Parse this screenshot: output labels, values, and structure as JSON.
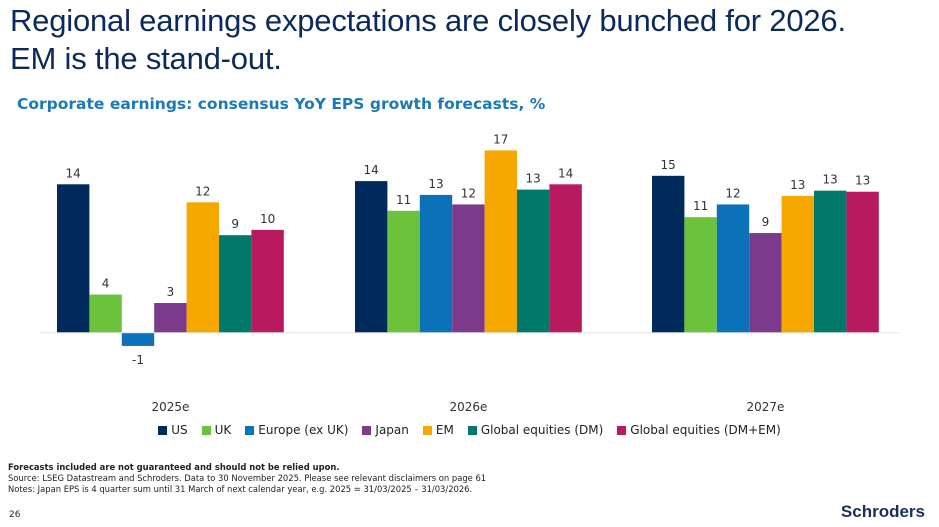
{
  "title_line1": "Regional earnings expectations are closely bunched for 2026.",
  "title_line2": "EM is the stand-out.",
  "chart_data": {
    "type": "bar",
    "title": "Corporate earnings: consensus YoY EPS growth forecasts, %",
    "xlabel": "",
    "ylabel": "",
    "categories": [
      "2025e",
      "2026e",
      "2027e"
    ],
    "series": [
      {
        "name": "US",
        "color": "#002a5c",
        "values": [
          14.0,
          14.3,
          14.8
        ],
        "labels": [
          "14",
          "14",
          "15"
        ]
      },
      {
        "name": "UK",
        "color": "#6cc23a",
        "values": [
          3.6,
          11.5,
          10.9
        ],
        "labels": [
          "4",
          "11",
          "11"
        ]
      },
      {
        "name": "Europe (ex UK)",
        "color": "#0b72ba",
        "values": [
          -1.25,
          13.0,
          12.1
        ],
        "labels": [
          "-1",
          "13",
          "12"
        ]
      },
      {
        "name": "Japan",
        "color": "#7b3a8c",
        "values": [
          2.8,
          12.1,
          9.4
        ],
        "labels": [
          "3",
          "12",
          "9"
        ]
      },
      {
        "name": "EM",
        "color": "#f6a800",
        "values": [
          12.3,
          17.2,
          12.9
        ],
        "labels": [
          "12",
          "17",
          "13"
        ]
      },
      {
        "name": "Global equities (DM)",
        "color": "#00796b",
        "values": [
          9.2,
          13.5,
          13.4
        ],
        "labels": [
          "9",
          "13",
          "13"
        ]
      },
      {
        "name": "Global equities (DM+EM)",
        "color": "#b8195f",
        "values": [
          9.7,
          14.0,
          13.3
        ],
        "labels": [
          "10",
          "14",
          "13"
        ]
      }
    ],
    "legend": "bottom",
    "grid": false
  },
  "notes": {
    "disclaimer": "Forecasts included are not guaranteed and should not be relied upon.",
    "source": "Source: LSEG Datastream and Schroders. Data to 30 November 2025. Please see relevant disclaimers on page 61",
    "japan": "Notes: Japan EPS is 4 quarter sum until 31 March of next calendar year, e.g. 2025 = 31/03/2025 – 31/03/2026."
  },
  "page_number": "26",
  "logo": "Schroders"
}
